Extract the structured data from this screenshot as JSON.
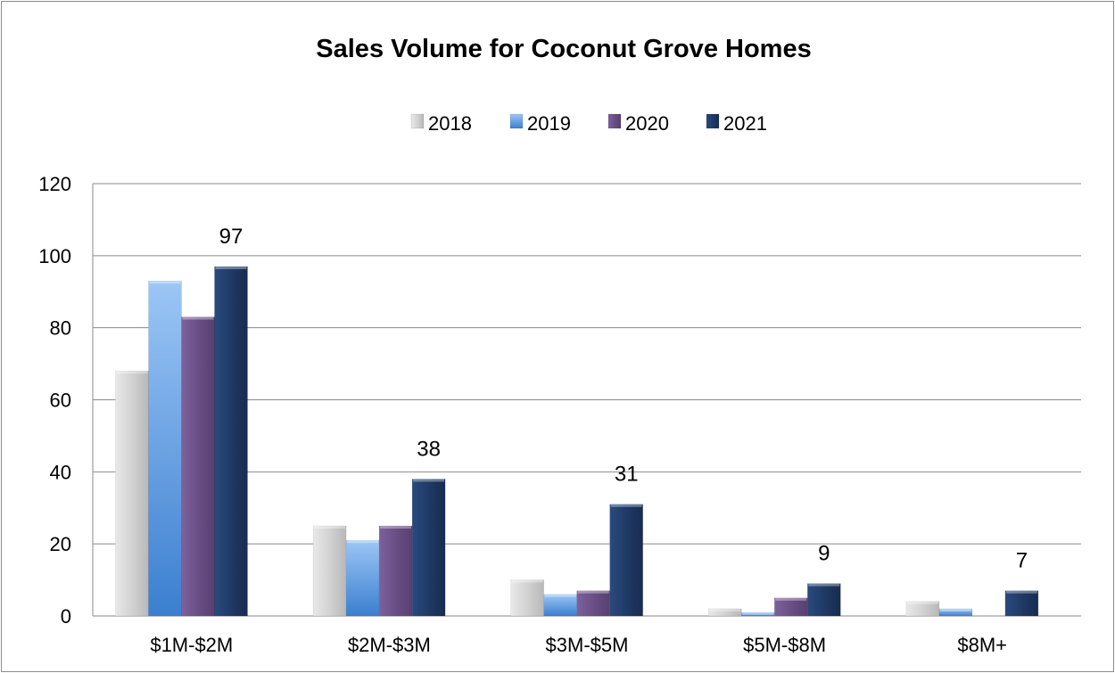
{
  "chart_data": {
    "type": "bar",
    "title": "Sales Volume for Coconut Grove Homes",
    "xlabel": "",
    "ylabel": "",
    "ylim": [
      0,
      120
    ],
    "yticks": [
      0,
      20,
      40,
      60,
      80,
      100,
      120
    ],
    "grid": true,
    "legend_position": "top",
    "categories": [
      "$1M-$2M",
      "$2M-$3M",
      "$3M-$5M",
      "$5M-$8M",
      "$8M+"
    ],
    "series": [
      {
        "name": "2018",
        "values": [
          68,
          25,
          10,
          2,
          4
        ],
        "color": "#cfcfcf"
      },
      {
        "name": "2019",
        "values": [
          93,
          21,
          6,
          1,
          2
        ],
        "color": "#6fa8e8"
      },
      {
        "name": "2020",
        "values": [
          83,
          25,
          7,
          5,
          0
        ],
        "color": "#6b4f86"
      },
      {
        "name": "2021",
        "values": [
          97,
          38,
          31,
          9,
          7
        ],
        "color": "#1f3a66"
      }
    ],
    "data_labels": [
      {
        "series": "2021",
        "category": "$1M-$2M",
        "text": "97"
      },
      {
        "series": "2021",
        "category": "$2M-$3M",
        "text": "38"
      },
      {
        "series": "2021",
        "category": "$3M-$5M",
        "text": "31"
      },
      {
        "series": "2021",
        "category": "$5M-$8M",
        "text": "9"
      },
      {
        "series": "2021",
        "category": "$8M+",
        "text": "7"
      }
    ]
  }
}
